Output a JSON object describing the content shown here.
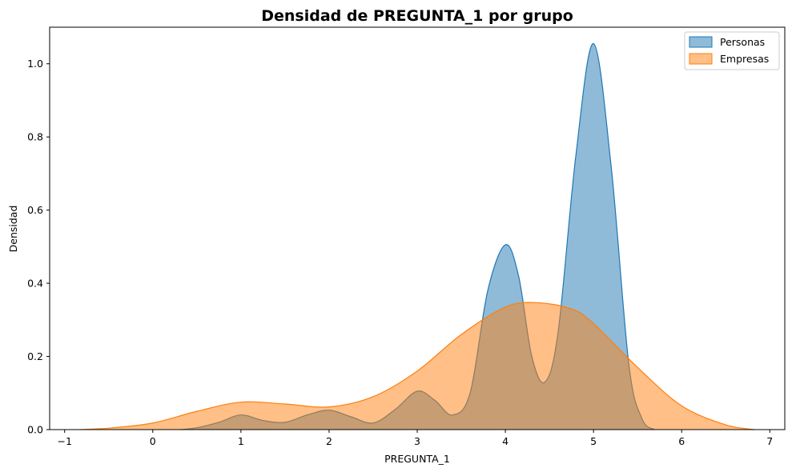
{
  "chart_data": {
    "type": "area",
    "title": "Densidad de PREGUNTA_1 por grupo",
    "xlabel": "PREGUNTA_1",
    "ylabel": "Densidad",
    "xlim": [
      -1.17,
      7.17
    ],
    "ylim": [
      0,
      1.1
    ],
    "xticks": [
      -1,
      0,
      1,
      2,
      3,
      4,
      5,
      6,
      7
    ],
    "xtick_labels": [
      "−1",
      "0",
      "1",
      "2",
      "3",
      "4",
      "5",
      "6",
      "7"
    ],
    "yticks": [
      0.0,
      0.2,
      0.4,
      0.6,
      0.8,
      1.0
    ],
    "ytick_labels": [
      "0.0",
      "0.2",
      "0.4",
      "0.6",
      "0.8",
      "1.0"
    ],
    "grid": false,
    "legend_position": "top-right",
    "series": [
      {
        "name": "Personas",
        "color": "#1f77b4",
        "fill_opacity": 0.5,
        "x": [
          0.31,
          0.5,
          0.75,
          1.0,
          1.25,
          1.5,
          1.75,
          2.0,
          2.25,
          2.5,
          2.75,
          3.0,
          3.2,
          3.4,
          3.6,
          3.8,
          4.0,
          4.15,
          4.3,
          4.45,
          4.6,
          4.8,
          5.0,
          5.2,
          5.4,
          5.55,
          5.69
        ],
        "y": [
          0.0,
          0.005,
          0.02,
          0.04,
          0.025,
          0.02,
          0.04,
          0.053,
          0.035,
          0.018,
          0.055,
          0.105,
          0.08,
          0.04,
          0.1,
          0.38,
          0.505,
          0.42,
          0.2,
          0.13,
          0.27,
          0.75,
          1.055,
          0.72,
          0.18,
          0.03,
          0.0
        ]
      },
      {
        "name": "Empresas",
        "color": "#ff7f0e",
        "fill_opacity": 0.5,
        "x": [
          -0.83,
          -0.5,
          0.0,
          0.5,
          1.0,
          1.5,
          2.0,
          2.5,
          3.0,
          3.5,
          4.0,
          4.35,
          4.75,
          5.0,
          5.5,
          6.0,
          6.5,
          6.83
        ],
        "y": [
          0.0,
          0.004,
          0.018,
          0.05,
          0.075,
          0.07,
          0.062,
          0.09,
          0.16,
          0.26,
          0.335,
          0.347,
          0.33,
          0.29,
          0.17,
          0.065,
          0.013,
          0.0
        ]
      }
    ]
  }
}
